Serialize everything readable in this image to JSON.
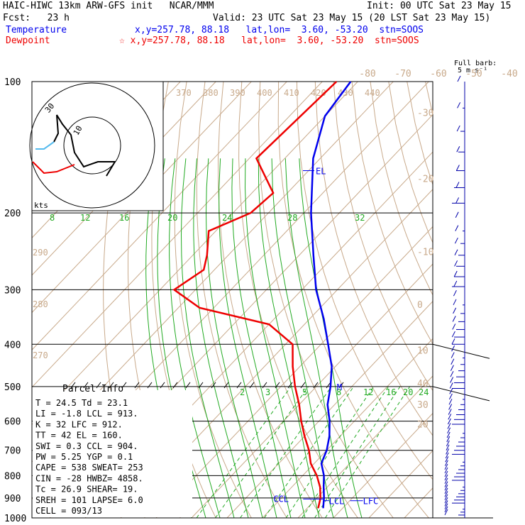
{
  "header": {
    "model": "HAIC-HIWC 13km ARW-GFS init   NCAR/MMM",
    "init": "Init: 00 UTC Sat 23 May 15",
    "fcst": "Fcst:   23 h",
    "valid": "Valid: 23 UTC Sat 23 May 15 (20 LST Sat 23 May 15)",
    "temperature_label": "Temperature",
    "temperature_info": "x,y=257.78, 88.18   lat,lon=  3.60, -53.20  stn=SOOS",
    "dewpoint_label": "Dewpoint",
    "dewpoint_info": "☆ x,y=257.78, 88.18   lat,lon=  3.60, -53.20  stn=SOOS",
    "barb_label_1": "Full barb:",
    "barb_label_2": "5 m s⁻¹"
  },
  "colors": {
    "temperature": "#0000ee",
    "dewpoint": "#ee0000",
    "isotherm": "#c8a98a",
    "mixing_ratio": "#22aa22",
    "moist_adiabat": "#22aa22",
    "hodo_light": "#55bbee"
  },
  "chart_data": {
    "type": "line",
    "subtype": "skew-T log-p",
    "pressure_levels": [
      "100",
      "200",
      "300",
      "400",
      "500",
      "600",
      "700",
      "800",
      "900",
      "1000"
    ],
    "isotherm_labels": [
      "-80",
      "-70",
      "-60",
      "-50",
      "-40",
      "-30",
      "-20",
      "-10",
      "0",
      "10",
      "20",
      "30",
      "40"
    ],
    "theta_labels_top": [
      "370",
      "380",
      "390",
      "400",
      "410",
      "420",
      "430",
      "440"
    ],
    "theta_labels_left": [
      "290",
      "280",
      "270"
    ],
    "mixing_ratio_labels_upper": [
      "8",
      "12",
      "16",
      "20",
      "24",
      "28",
      "32"
    ],
    "mixing_ratio_labels_lower": [
      "2",
      "3",
      "5",
      "8",
      "12",
      "16",
      "20",
      "24"
    ],
    "series": [
      {
        "name": "Temperature",
        "points": [
          [
            100,
            -82
          ],
          [
            120,
            -80
          ],
          [
            150,
            -72
          ],
          [
            200,
            -58
          ],
          [
            250,
            -46
          ],
          [
            300,
            -36
          ],
          [
            350,
            -26
          ],
          [
            400,
            -18
          ],
          [
            450,
            -11
          ],
          [
            500,
            -6
          ],
          [
            550,
            -2
          ],
          [
            600,
            3
          ],
          [
            650,
            7
          ],
          [
            700,
            10
          ],
          [
            750,
            12
          ],
          [
            800,
            16
          ],
          [
            850,
            19
          ],
          [
            900,
            22
          ],
          [
            950,
            24.5
          ]
        ]
      },
      {
        "name": "Dewpoint",
        "points": [
          [
            100,
            -86
          ],
          [
            150,
            -88
          ],
          [
            180,
            -74
          ],
          [
            200,
            -75
          ],
          [
            220,
            -82
          ],
          [
            250,
            -76
          ],
          [
            270,
            -73
          ],
          [
            300,
            -76
          ],
          [
            330,
            -64
          ],
          [
            360,
            -40
          ],
          [
            400,
            -28
          ],
          [
            450,
            -22
          ],
          [
            500,
            -16
          ],
          [
            550,
            -10
          ],
          [
            600,
            -5
          ],
          [
            650,
            0
          ],
          [
            700,
            5
          ],
          [
            750,
            9
          ],
          [
            800,
            14
          ],
          [
            850,
            18
          ],
          [
            900,
            21
          ],
          [
            950,
            23.1
          ]
        ]
      }
    ],
    "annotations": [
      "EL",
      "M",
      "CCL",
      "LCL",
      "LFC",
      "kts",
      "10",
      "30"
    ]
  },
  "parcel_info": {
    "title": "Parcel Info",
    "rows": [
      "T  =    24.5  Td =  23.1",
      "LI =    -1.8  LCL =  913.",
      "K  =      32  LFC =  912.",
      "TT =      42  EL  =  160.",
      "SWI =    0.3  CCL =  904.",
      "PW  =   5.25  YGP =   0.1",
      "CAPE =   538  SWEAT=  253",
      "CIN  =   -28  HWBZ= 4858.",
      "Tc  =   26.9  SHEAR=  19.",
      "SREH =   101  LAPSE=  6.0",
      "CELL = 093/13"
    ]
  }
}
